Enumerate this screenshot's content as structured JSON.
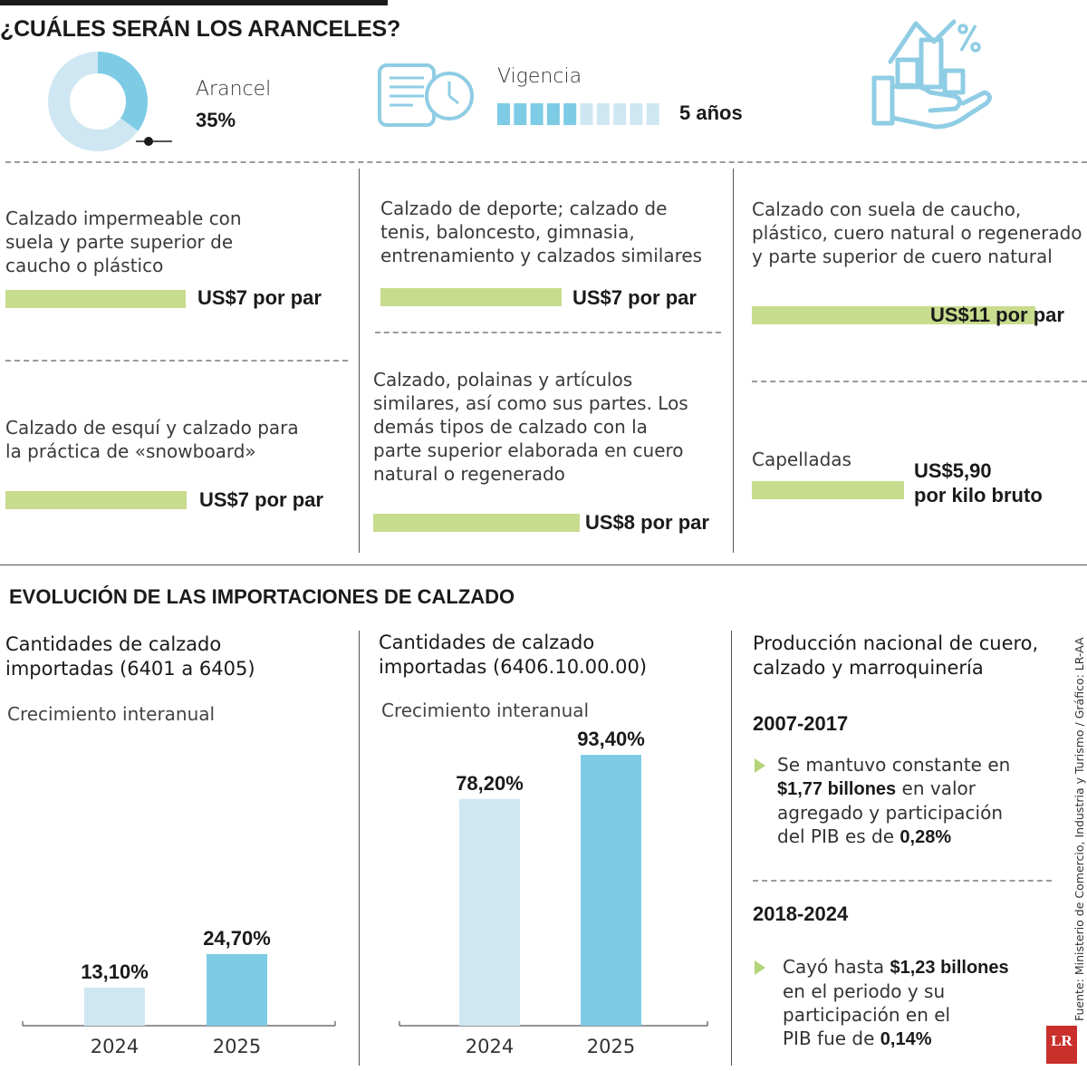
{
  "title": "¿CUÁLES SERÁN LOS ARANCELES?",
  "arancel": {
    "label": "Arancel",
    "value": "35%",
    "fraction": 0.35
  },
  "vigencia": {
    "label": "Vigencia",
    "value": "5 años",
    "segments_filled": 5,
    "segments_total": 10
  },
  "colors": {
    "light_blue": "#cfe7f3",
    "blue": "#7ecbe5",
    "green": "#c8dc8e",
    "icon": "#8fcde4"
  },
  "tariffs": [
    {
      "desc_lines": [
        "Calzado impermeable con",
        "suela y parte superior de",
        "caucho o plástico"
      ],
      "price_lines": [
        "US$7 por par"
      ]
    },
    {
      "desc_lines": [
        "Calzado de deporte; calzado de",
        "tenis, baloncesto, gimnasia,",
        "entrenamiento y calzados similares"
      ],
      "price_lines": [
        "US$7 por par"
      ]
    },
    {
      "desc_lines": [
        "Calzado con suela de caucho,",
        "plástico, cuero natural o regenerado",
        "y parte superior de cuero natural"
      ],
      "price_lines": [
        "US$11 por par"
      ]
    },
    {
      "desc_lines": [
        "Calzado de esquí y calzado para",
        "la práctica de «snowboard»"
      ],
      "price_lines": [
        "US$7 por par"
      ]
    },
    {
      "desc_lines": [
        "Calzado, polainas y artículos",
        "similares, así como sus partes. Los",
        "demás tipos de calzado con la",
        "parte superior elaborada en cuero",
        "natural o regenerado"
      ],
      "price_lines": [
        "US$8 por par"
      ]
    },
    {
      "desc_lines": [
        "Capelladas"
      ],
      "price_lines": [
        "US$5,90",
        "por kilo bruto"
      ]
    }
  ],
  "section2_title": "EVOLUCIÓN DE LAS IMPORTACIONES DE CALZADO",
  "chart_data": [
    {
      "type": "bar",
      "title_lines": [
        "Cantidades de calzado",
        "importadas (6401 a 6405)"
      ],
      "subtitle": "Crecimiento interanual",
      "categories": [
        "2024",
        "2025"
      ],
      "values": [
        13.1,
        24.7
      ],
      "value_labels": [
        "13,10%",
        "24,70%"
      ],
      "colors": [
        "#cfe7f3",
        "#7ecbe5"
      ]
    },
    {
      "type": "bar",
      "title_lines": [
        "Cantidades de calzado",
        "importadas (6406.10.00.00)"
      ],
      "subtitle": "Crecimiento interanual",
      "categories": [
        "2024",
        "2025"
      ],
      "values": [
        78.2,
        93.4
      ],
      "value_labels": [
        "78,20%",
        "93,40%"
      ],
      "colors": [
        "#cfe7f3",
        "#7ecbe5"
      ]
    }
  ],
  "production": {
    "title_lines": [
      "Producción nacional de cuero,",
      "calzado y marroquinería"
    ],
    "periods": [
      {
        "period": "2007-2017",
        "lines": [
          [
            {
              "t": "Se mantuvo constante en"
            }
          ],
          [
            {
              "t": "$1,77 billones",
              "b": true
            },
            {
              "t": " en valor"
            }
          ],
          [
            {
              "t": "agregado y participación"
            }
          ],
          [
            {
              "t": "del PIB es de "
            },
            {
              "t": "0,28%",
              "b": true
            }
          ]
        ]
      },
      {
        "period": "2018-2024",
        "lines": [
          [
            {
              "t": "Cayó hasta "
            },
            {
              "t": "$1,23 billones",
              "b": true
            }
          ],
          [
            {
              "t": "en el periodo y su"
            }
          ],
          [
            {
              "t": "participación en el"
            }
          ],
          [
            {
              "t": "PIB fue de "
            },
            {
              "t": "0,14%",
              "b": true
            }
          ]
        ]
      }
    ]
  },
  "source": "Fuente: Ministerio de Comercio, Industria y Turismo / Gráfico: LR-AA",
  "logo": "LR"
}
